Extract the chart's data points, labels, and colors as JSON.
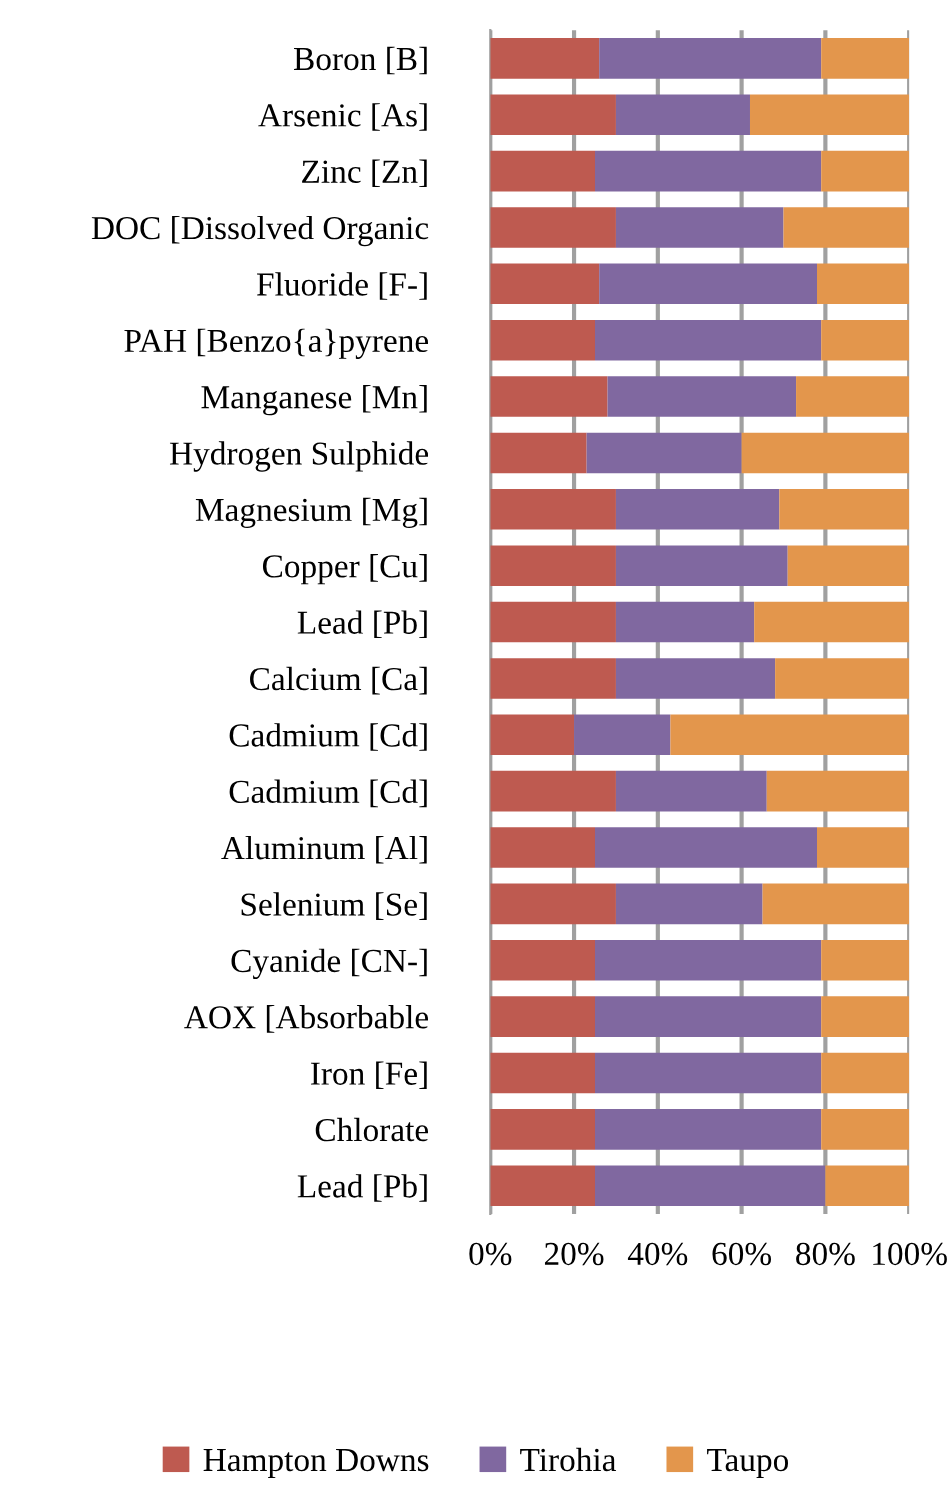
{
  "chart_data": {
    "type": "bar",
    "orientation": "horizontal",
    "stacked": true,
    "categories": [
      "Boron [B]",
      "Arsenic [As]",
      "Zinc [Zn]",
      "DOC [Dissolved Organic",
      "Fluoride [F-]",
      "PAH [Benzo{a}pyrene",
      "Manganese [Mn]",
      "Hydrogen Sulphide",
      "Magnesium [Mg]",
      "Copper [Cu]",
      "Lead [Pb]",
      "Calcium [Ca]",
      "Cadmium [Cd]",
      "Cadmium [Cd]",
      "Aluminum [Al]",
      "Selenium [Se]",
      "Cyanide [CN-]",
      "AOX [Absorbable",
      "Iron [Fe]",
      "Chlorate",
      "Lead [Pb]"
    ],
    "series": [
      {
        "name": "Hampton Downs",
        "color": "#be5a50",
        "values": [
          26,
          30,
          25,
          30,
          26,
          25,
          28,
          23,
          30,
          30,
          30,
          30,
          20,
          30,
          25,
          30,
          25,
          25,
          25,
          25,
          25
        ]
      },
      {
        "name": "Tirohia",
        "color": "#8068a0",
        "values": [
          53,
          32,
          54,
          40,
          52,
          54,
          45,
          37,
          39,
          41,
          33,
          38,
          23,
          36,
          53,
          35,
          54,
          54,
          54,
          54,
          55
        ]
      },
      {
        "name": "Taupo",
        "color": "#e3964c",
        "values": [
          21,
          38,
          21,
          30,
          22,
          21,
          27,
          40,
          31,
          29,
          37,
          32,
          57,
          34,
          22,
          35,
          21,
          21,
          21,
          21,
          20
        ]
      }
    ],
    "xlim": [
      0,
      100
    ],
    "xticks": [
      {
        "value": 0,
        "label": "0%"
      },
      {
        "value": 20,
        "label": "20%"
      },
      {
        "value": 40,
        "label": "40%"
      },
      {
        "value": 60,
        "label": "60%"
      },
      {
        "value": 80,
        "label": "80%"
      },
      {
        "value": 100,
        "label": "100%"
      }
    ],
    "grid": "x",
    "legend": "bottom"
  }
}
